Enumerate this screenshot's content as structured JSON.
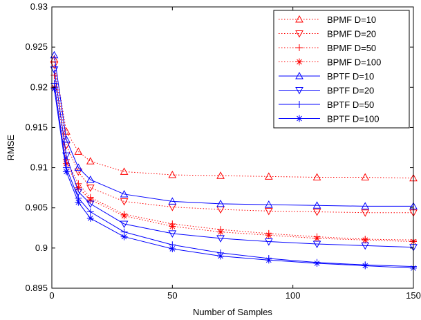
{
  "chart_data": {
    "type": "line",
    "xlabel": "Number of Samples",
    "ylabel": "RMSE",
    "xlim": [
      0,
      150
    ],
    "ylim": [
      0.895,
      0.93
    ],
    "x_ticks": [
      0,
      50,
      100,
      150
    ],
    "x_tick_labels": [
      "0",
      "50",
      "100",
      "150"
    ],
    "y_ticks": [
      0.895,
      0.9,
      0.905,
      0.91,
      0.915,
      0.92,
      0.925,
      0.93
    ],
    "y_tick_labels": [
      "0.895",
      "0.9",
      "0.905",
      "0.91",
      "0.915",
      "0.92",
      "0.925",
      "0.93"
    ],
    "grid": false,
    "legend_position": "top-right",
    "x": [
      1,
      6,
      11,
      16,
      30,
      50,
      70,
      90,
      110,
      130,
      150
    ],
    "series": [
      {
        "name": "BPMF D=10",
        "color": "#ff0000",
        "line_style": "dotted",
        "marker": "triangle-up",
        "values": [
          0.9235,
          0.9145,
          0.912,
          0.9108,
          0.9095,
          0.9091,
          0.909,
          0.9089,
          0.9088,
          0.9088,
          0.9087
        ]
      },
      {
        "name": "BPMF D=20",
        "color": "#ff0000",
        "line_style": "dotted",
        "marker": "triangle-down",
        "values": [
          0.9228,
          0.9128,
          0.9095,
          0.9075,
          0.9058,
          0.9051,
          0.9048,
          0.9046,
          0.9045,
          0.9044,
          0.9044
        ]
      },
      {
        "name": "BPMF D=50",
        "color": "#ff0000",
        "line_style": "dotted",
        "marker": "plus",
        "values": [
          0.9215,
          0.911,
          0.908,
          0.9063,
          0.9042,
          0.903,
          0.9023,
          0.9018,
          0.9014,
          0.9011,
          0.901
        ]
      },
      {
        "name": "BPMF D=100",
        "color": "#ff0000",
        "line_style": "dotted",
        "marker": "asterisk",
        "values": [
          0.92,
          0.9105,
          0.9075,
          0.906,
          0.904,
          0.9027,
          0.902,
          0.9016,
          0.9012,
          0.901,
          0.9008
        ]
      },
      {
        "name": "BPTF D=10",
        "color": "#0000ff",
        "line_style": "solid",
        "marker": "triangle-up",
        "values": [
          0.924,
          0.9135,
          0.91,
          0.9085,
          0.9067,
          0.9058,
          0.9055,
          0.9054,
          0.9053,
          0.9052,
          0.9052
        ]
      },
      {
        "name": "BPTF D=20",
        "color": "#0000ff",
        "line_style": "solid",
        "marker": "triangle-down",
        "values": [
          0.9222,
          0.9115,
          0.907,
          0.9055,
          0.903,
          0.9018,
          0.9012,
          0.9008,
          0.9005,
          0.9003,
          0.9001
        ]
      },
      {
        "name": "BPTF D=50",
        "color": "#0000ff",
        "line_style": "solid",
        "marker": "plus",
        "values": [
          0.9205,
          0.91,
          0.9062,
          0.9045,
          0.902,
          0.9004,
          0.8994,
          0.8987,
          0.8982,
          0.8979,
          0.8977
        ]
      },
      {
        "name": "BPTF D=100",
        "color": "#0000ff",
        "line_style": "solid",
        "marker": "asterisk",
        "values": [
          0.9198,
          0.9095,
          0.9057,
          0.9037,
          0.9014,
          0.8999,
          0.899,
          0.8985,
          0.8981,
          0.8978,
          0.8975
        ]
      }
    ]
  }
}
